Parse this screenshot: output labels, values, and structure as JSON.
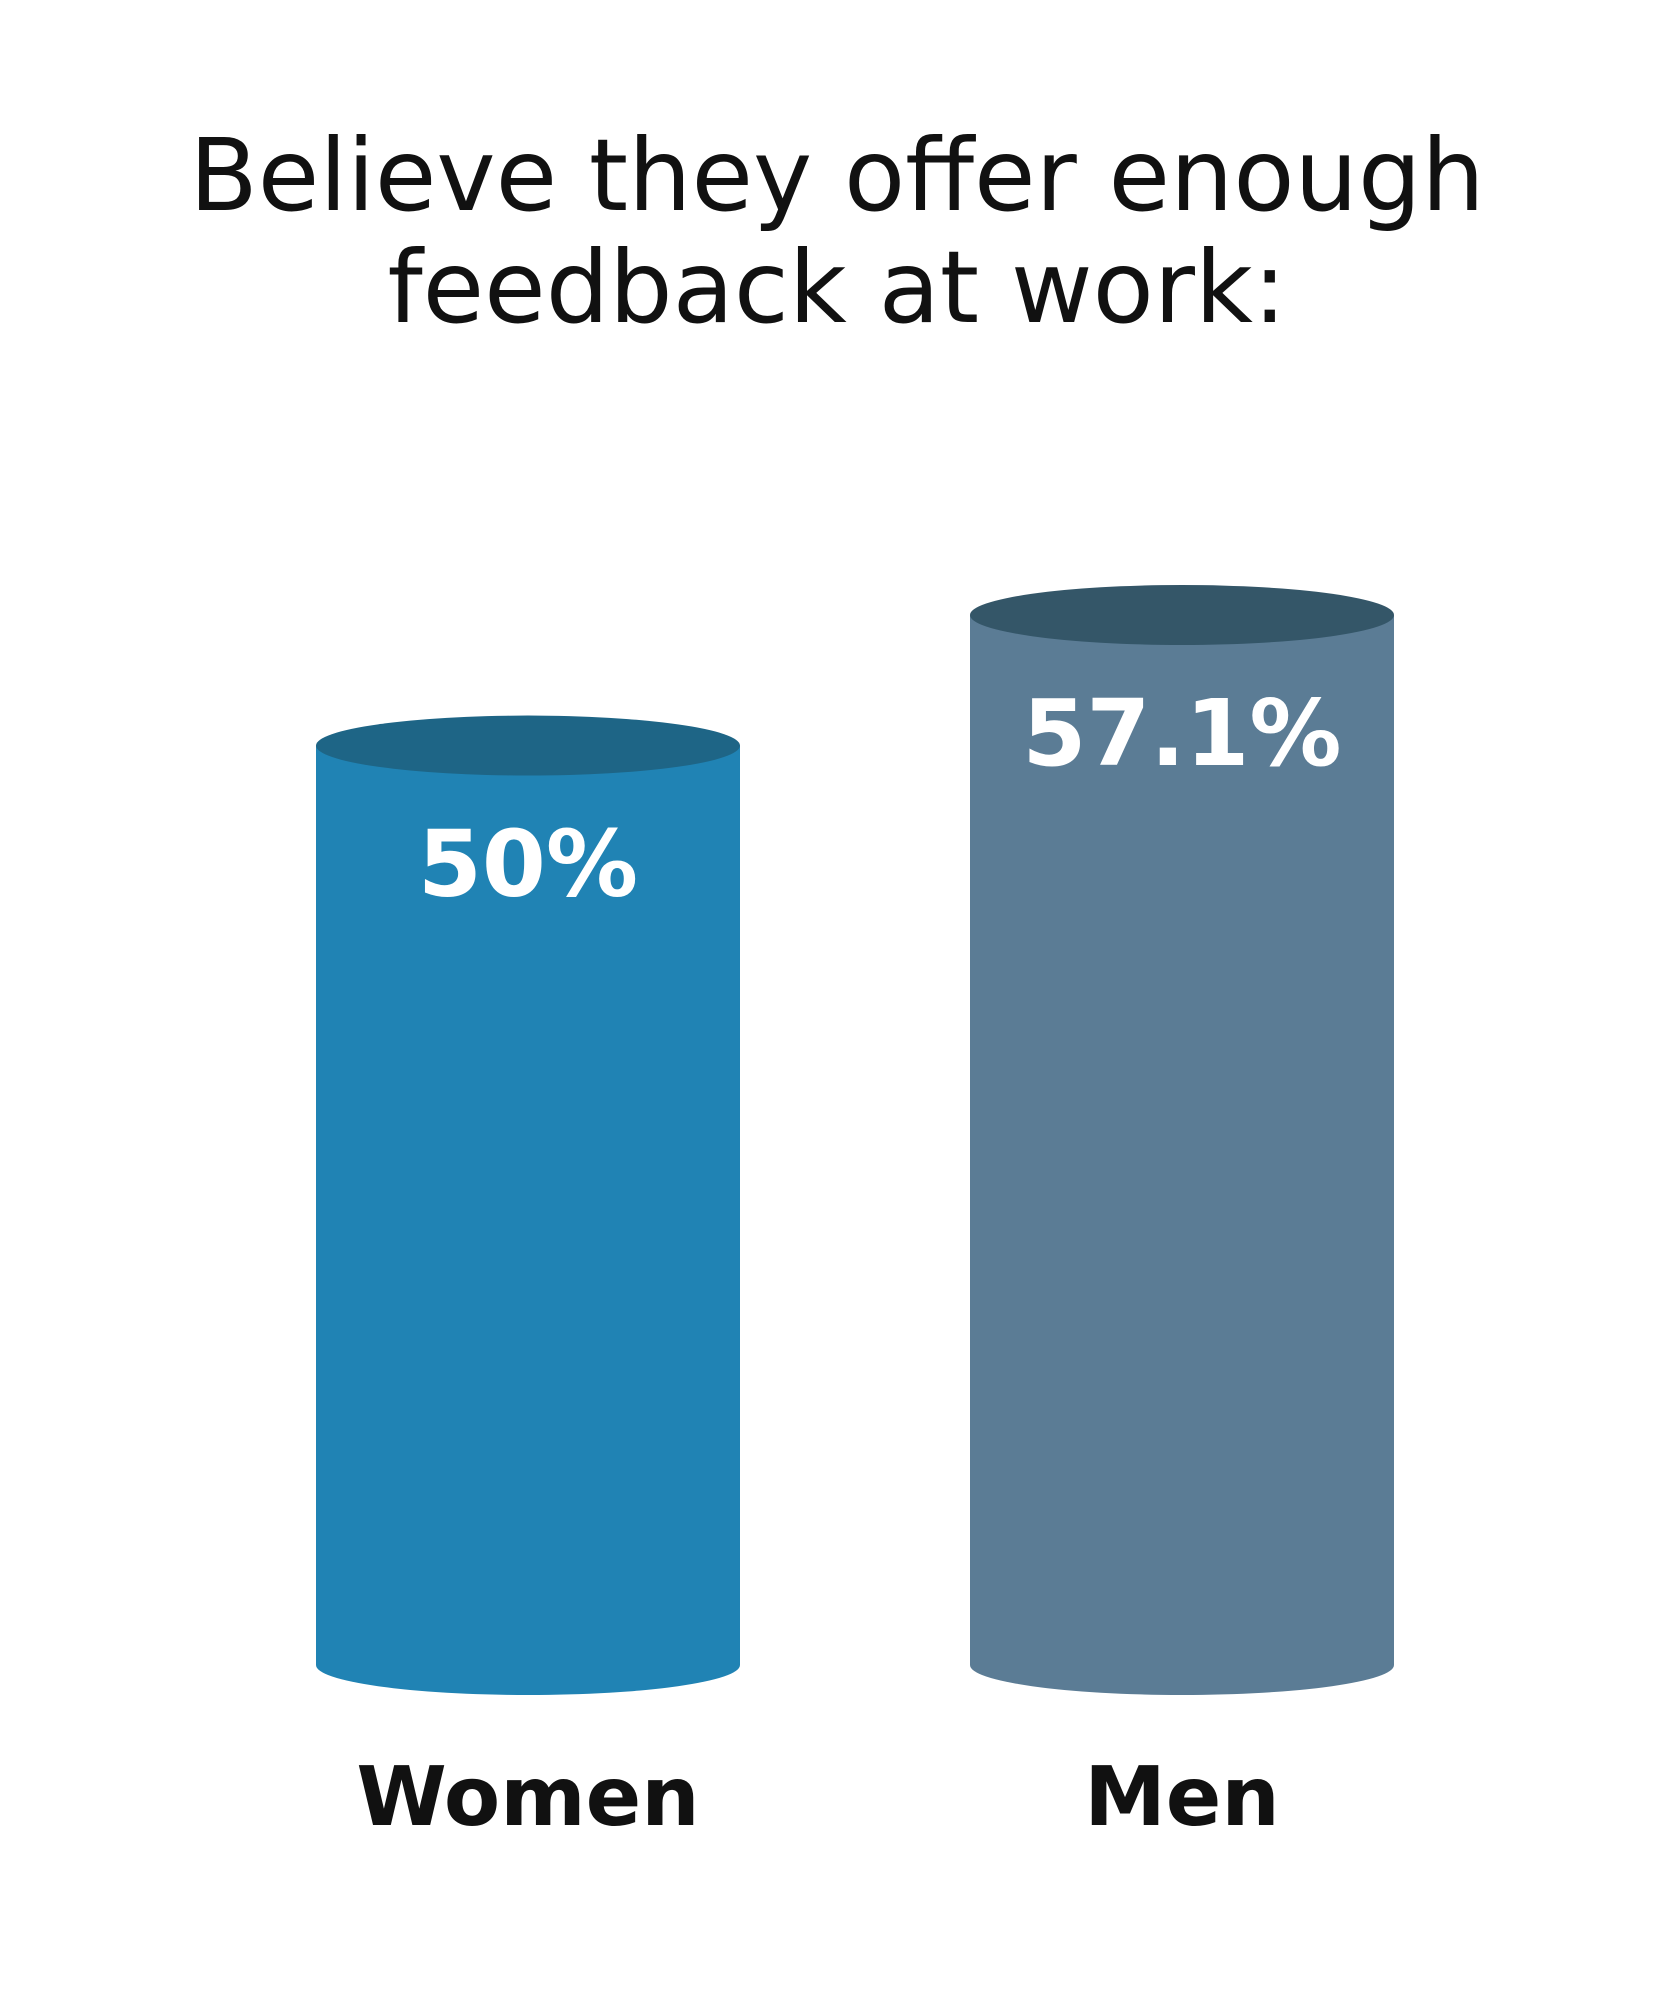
{
  "chart_data": {
    "type": "bar",
    "title": "Believe they offer enough feedback at work:",
    "categories": [
      "Women",
      "Men"
    ],
    "values": [
      50,
      57.1
    ],
    "value_labels": [
      "50%",
      "57.1%"
    ],
    "colors": {
      "Women": {
        "body": "#2083b4",
        "top": "#1e6586"
      },
      "Men": {
        "body": "#5b7c95",
        "top": "#345668"
      }
    },
    "ylim": [
      0,
      57.1
    ],
    "grid": false,
    "style": "cylinder"
  }
}
